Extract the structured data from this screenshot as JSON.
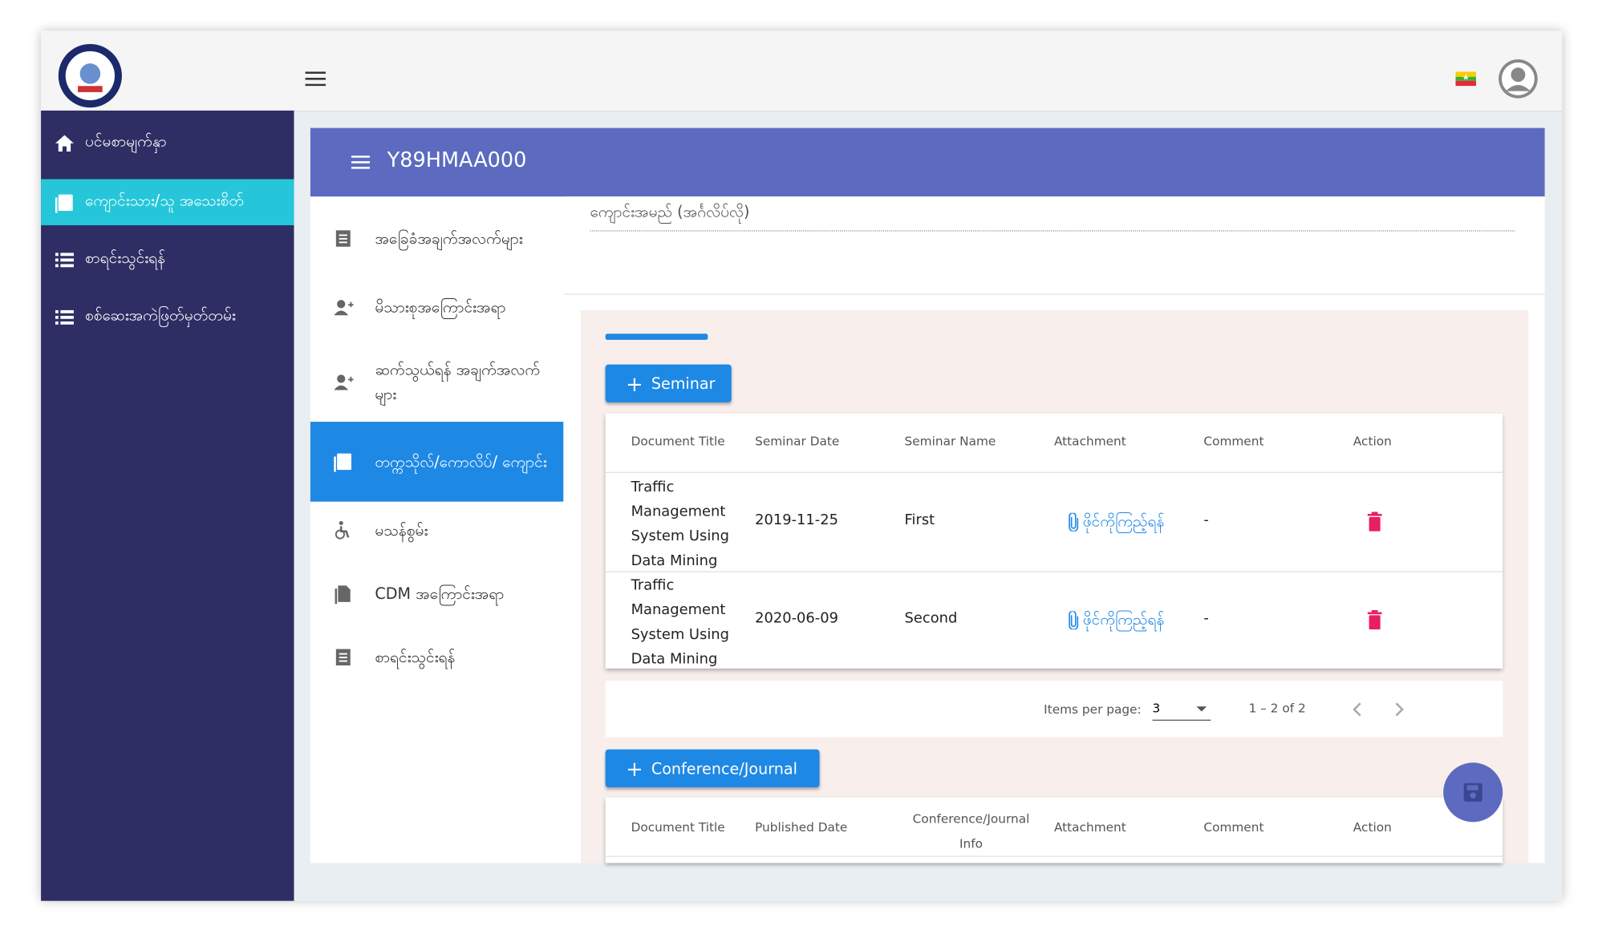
{
  "sidebar": {
    "items": [
      "ပင်မစာမျက်နှာ",
      "ကျောင်းသား/သူ အသေးစိတ်",
      "စာရင်းသွင်းရန်",
      "စစ်ဆေးအကဲဖြတ်မှတ်တမ်း"
    ]
  },
  "card": {
    "title": "Y89HMAA000"
  },
  "nav": {
    "items": [
      "အခြေခံအချက်အလက်များ",
      "မိသားစုအကြောင်းအရာ",
      "ဆက်သွယ်ရန် အချက်အလက်များ",
      "တက္ကသိုလ်/ကောလိပ်/ ကျောင်း",
      "မသန်စွမ်း",
      "CDM အကြောင်းအရာ",
      "စာရင်းသွင်းရန်"
    ]
  },
  "field": {
    "label": "ကျောင်းအမည် (အင်္ဂလိပ်လို)"
  },
  "seminar": {
    "button": "Seminar",
    "headers": [
      "Document Title",
      "Seminar Date",
      "Seminar Name",
      "Attachment",
      "Comment",
      "Action"
    ],
    "rows": [
      [
        "Traffic Management System Using Data Mining",
        "2019-11-25",
        "First",
        "ဖိုင်ကိုကြည့်ရန်",
        "-"
      ],
      [
        "Traffic Management System Using Data Mining",
        "2020-06-09",
        "Second",
        "ဖိုင်ကိုကြည့်ရန်",
        "-"
      ]
    ]
  },
  "paginator": {
    "items_per_page_label": "Items per page:",
    "page_size": "3",
    "range": "1 – 2 of 2"
  },
  "conference": {
    "button": "Conference/Journal",
    "headers": [
      "Document Title",
      "Published Date",
      "Conference/Journal Info",
      "Attachment",
      "Comment",
      "Action"
    ]
  }
}
